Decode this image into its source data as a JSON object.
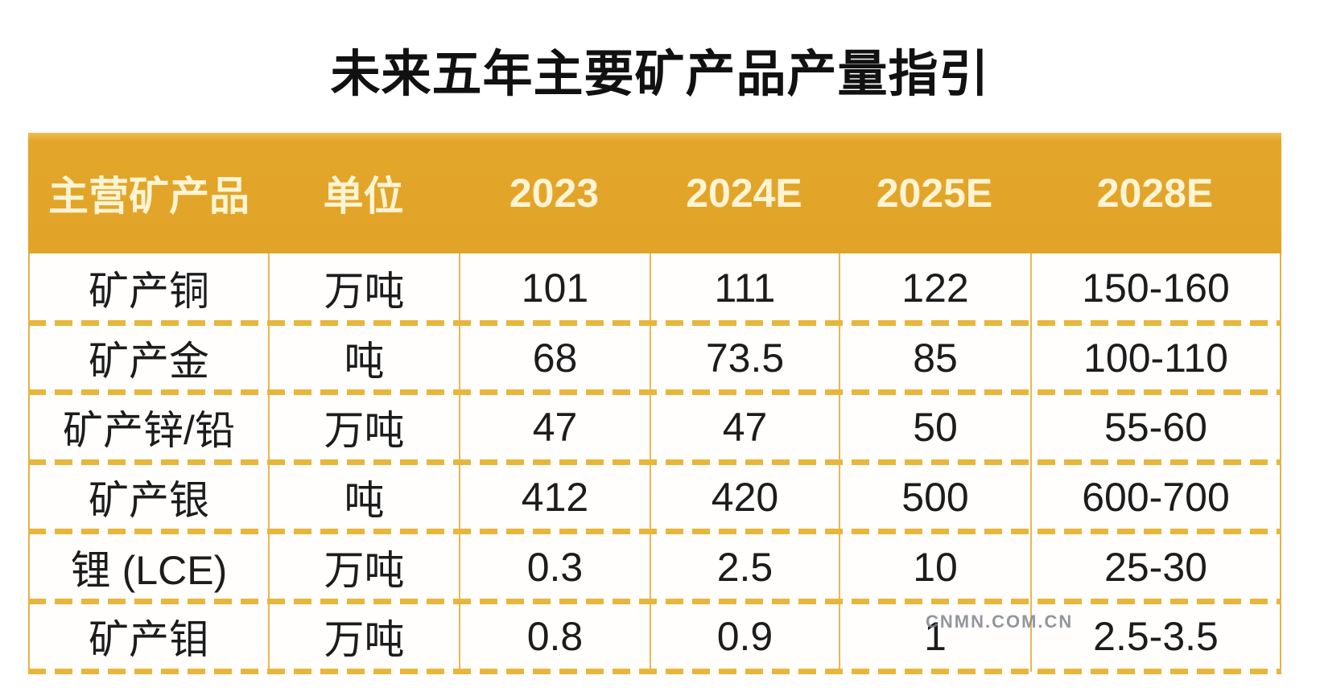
{
  "title": "未来五年主要矿产品产量指引",
  "watermark": "CNMN.COM.CN",
  "colors": {
    "header_background": "#e2a429",
    "header_text": "#fdf4d3",
    "grid_line_solid": "#e8b754",
    "grid_line_dashed": "#e7b63a",
    "body_text": "#1c1c1c",
    "title_text": "#111111",
    "watermark_text": "#82868c"
  },
  "table": {
    "headers": [
      "主营矿产品",
      "单位",
      "2023",
      "2024E",
      "2025E",
      "2028E"
    ],
    "rows": [
      {
        "cells": [
          "矿产铜",
          "万吨",
          "101",
          "111",
          "122",
          "150-160"
        ]
      },
      {
        "cells": [
          "矿产金",
          "吨",
          "68",
          "73.5",
          "85",
          "100-110"
        ]
      },
      {
        "cells": [
          "矿产锌/铅",
          "万吨",
          "47",
          "47",
          "50",
          "55-60"
        ]
      },
      {
        "cells": [
          "矿产银",
          "吨",
          "412",
          "420",
          "500",
          "600-700"
        ]
      },
      {
        "cells": [
          "锂 (LCE)",
          "万吨",
          "0.3",
          "2.5",
          "10",
          "25-30"
        ]
      },
      {
        "cells": [
          "矿产钼",
          "万吨",
          "0.8",
          "0.9",
          "1",
          "2.5-3.5"
        ]
      }
    ]
  },
  "chart_data": {
    "type": "table",
    "title": "未来五年主要矿产品产量指引",
    "columns": [
      "主营矿产品",
      "单位",
      "2023",
      "2024E",
      "2025E",
      "2028E"
    ],
    "rows": [
      [
        "矿产铜",
        "万吨",
        "101",
        "111",
        "122",
        "150-160"
      ],
      [
        "矿产金",
        "吨",
        "68",
        "73.5",
        "85",
        "100-110"
      ],
      [
        "矿产锌/铅",
        "万吨",
        "47",
        "47",
        "50",
        "55-60"
      ],
      [
        "矿产银",
        "吨",
        "412",
        "420",
        "500",
        "600-700"
      ],
      [
        "锂 (LCE)",
        "万吨",
        "0.3",
        "2.5",
        "10",
        "25-30"
      ],
      [
        "矿产钼",
        "万吨",
        "0.8",
        "0.9",
        "1",
        "2.5-3.5"
      ]
    ]
  }
}
